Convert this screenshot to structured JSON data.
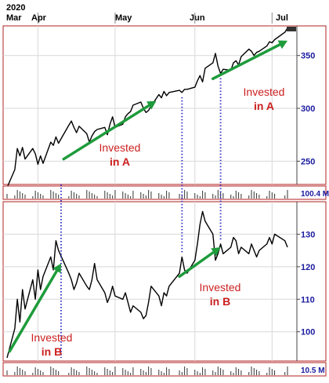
{
  "chart_data": [
    {
      "type": "line",
      "name_hint": "stock-a-panel",
      "x_axis": {
        "year_label": "2020",
        "month_labels": [
          "Mar",
          "Apr",
          "May",
          "Jun",
          "Jul"
        ],
        "range": [
          "2020-03-20",
          "2020-07-07"
        ]
      },
      "ylim": [
        228,
        378
      ],
      "y_ticks": [
        250,
        300,
        350
      ],
      "grid": true,
      "volume_label": "100.4 M",
      "series": [
        {
          "values": [
            [
              "2020-03-20",
              225
            ],
            [
              "2020-03-23",
              242
            ],
            [
              "2020-03-24",
              262
            ],
            [
              "2020-03-25",
              255
            ],
            [
              "2020-03-26",
              263
            ],
            [
              "2020-03-27",
              252
            ],
            [
              "2020-03-30",
              262
            ],
            [
              "2020-03-31",
              257
            ],
            [
              "2020-04-01",
              247
            ],
            [
              "2020-04-02",
              255
            ],
            [
              "2020-04-03",
              248
            ],
            [
              "2020-04-06",
              268
            ],
            [
              "2020-04-07",
              265
            ],
            [
              "2020-04-08",
              273
            ],
            [
              "2020-04-09",
              267
            ],
            [
              "2020-04-13",
              284
            ],
            [
              "2020-04-14",
              288
            ],
            [
              "2020-04-15",
              282
            ],
            [
              "2020-04-16",
              277
            ],
            [
              "2020-04-17",
              283
            ],
            [
              "2020-04-20",
              276
            ],
            [
              "2020-04-21",
              268
            ],
            [
              "2020-04-22",
              274
            ],
            [
              "2020-04-23",
              278
            ],
            [
              "2020-04-24",
              280
            ],
            [
              "2020-04-27",
              282
            ],
            [
              "2020-04-28",
              275
            ],
            [
              "2020-04-29",
              285
            ],
            [
              "2020-04-30",
              292
            ],
            [
              "2020-05-01",
              282
            ],
            [
              "2020-05-04",
              285
            ],
            [
              "2020-05-05",
              292
            ],
            [
              "2020-05-06",
              295
            ],
            [
              "2020-05-07",
              297
            ],
            [
              "2020-05-08",
              303
            ],
            [
              "2020-05-11",
              306
            ],
            [
              "2020-05-12",
              300
            ],
            [
              "2020-05-13",
              296
            ],
            [
              "2020-05-14",
              298
            ],
            [
              "2020-05-15",
              302
            ],
            [
              "2020-05-18",
              313
            ],
            [
              "2020-05-19",
              310
            ],
            [
              "2020-05-20",
              316
            ],
            [
              "2020-05-21",
              312
            ],
            [
              "2020-05-22",
              315
            ],
            [
              "2020-05-26",
              317
            ],
            [
              "2020-05-27",
              315
            ],
            [
              "2020-05-28",
              318
            ],
            [
              "2020-05-29",
              318
            ],
            [
              "2020-06-01",
              320
            ],
            [
              "2020-06-02",
              326
            ],
            [
              "2020-06-03",
              331
            ],
            [
              "2020-06-04",
              325
            ],
            [
              "2020-06-05",
              338
            ],
            [
              "2020-06-08",
              343
            ],
            [
              "2020-06-09",
              352
            ],
            [
              "2020-06-10",
              340
            ],
            [
              "2020-06-11",
              333
            ],
            [
              "2020-06-12",
              337
            ],
            [
              "2020-06-15",
              336
            ],
            [
              "2020-06-16",
              343
            ],
            [
              "2020-06-17",
              345
            ],
            [
              "2020-06-18",
              341
            ],
            [
              "2020-06-19",
              349
            ],
            [
              "2020-06-22",
              356
            ],
            [
              "2020-06-23",
              354
            ],
            [
              "2020-06-24",
              350
            ],
            [
              "2020-06-25",
              353
            ],
            [
              "2020-06-26",
              354
            ],
            [
              "2020-06-29",
              359
            ],
            [
              "2020-06-30",
              363
            ],
            [
              "2020-07-01",
              362
            ],
            [
              "2020-07-02",
              365
            ],
            [
              "2020-07-06",
              372
            ],
            [
              "2020-07-07",
              376
            ]
          ]
        }
      ],
      "annotations": [
        {
          "text_line1": "Invested",
          "text_line2": "in A",
          "from": [
            "2020-04-11",
            252
          ],
          "to": [
            "2020-05-17",
            307
          ]
        },
        {
          "text_line1": "Invested",
          "text_line2": "in A",
          "from": [
            "2020-06-08",
            328
          ],
          "to": [
            "2020-07-07",
            364
          ]
        }
      ]
    },
    {
      "type": "line",
      "name_hint": "stock-b-panel",
      "ylim": [
        91,
        140
      ],
      "y_ticks": [
        100,
        110,
        120,
        130
      ],
      "grid": true,
      "volume_label": "10.5 M",
      "series": [
        {
          "values": [
            [
              "2020-03-20",
              92
            ],
            [
              "2020-03-23",
              101
            ],
            [
              "2020-03-24",
              110
            ],
            [
              "2020-03-25",
              103
            ],
            [
              "2020-03-26",
              113
            ],
            [
              "2020-03-27",
              107
            ],
            [
              "2020-03-30",
              116
            ],
            [
              "2020-03-31",
              110
            ],
            [
              "2020-04-01",
              119
            ],
            [
              "2020-04-02",
              113
            ],
            [
              "2020-04-03",
              117
            ],
            [
              "2020-04-06",
              123
            ],
            [
              "2020-04-07",
              119
            ],
            [
              "2020-04-08",
              128
            ],
            [
              "2020-04-09",
              125
            ],
            [
              "2020-04-13",
              118
            ],
            [
              "2020-04-14",
              116
            ],
            [
              "2020-04-15",
              113
            ],
            [
              "2020-04-16",
              115
            ],
            [
              "2020-04-17",
              118
            ],
            [
              "2020-04-20",
              114
            ],
            [
              "2020-04-21",
              113
            ],
            [
              "2020-04-22",
              116
            ],
            [
              "2020-04-23",
              121
            ],
            [
              "2020-04-24",
              116
            ],
            [
              "2020-04-27",
              112
            ],
            [
              "2020-04-28",
              109
            ],
            [
              "2020-04-29",
              111
            ],
            [
              "2020-04-30",
              114
            ],
            [
              "2020-05-01",
              111
            ],
            [
              "2020-05-04",
              110
            ],
            [
              "2020-05-05",
              112
            ],
            [
              "2020-05-06",
              109
            ],
            [
              "2020-05-07",
              106
            ],
            [
              "2020-05-08",
              108
            ],
            [
              "2020-05-11",
              106
            ],
            [
              "2020-05-12",
              104
            ],
            [
              "2020-05-13",
              105
            ],
            [
              "2020-05-14",
              109
            ],
            [
              "2020-05-15",
              114
            ],
            [
              "2020-05-18",
              111
            ],
            [
              "2020-05-19",
              108
            ],
            [
              "2020-05-20",
              112
            ],
            [
              "2020-05-21",
              111
            ],
            [
              "2020-05-22",
              114
            ],
            [
              "2020-05-26",
              118
            ],
            [
              "2020-05-27",
              123
            ],
            [
              "2020-05-28",
              119
            ],
            [
              "2020-05-29",
              118
            ],
            [
              "2020-06-01",
              122
            ],
            [
              "2020-06-02",
              127
            ],
            [
              "2020-06-03",
              133
            ],
            [
              "2020-06-04",
              137
            ],
            [
              "2020-06-05",
              134
            ],
            [
              "2020-06-08",
              130
            ],
            [
              "2020-06-09",
              122
            ],
            [
              "2020-06-10",
              124
            ],
            [
              "2020-06-11",
              127
            ],
            [
              "2020-06-12",
              124
            ],
            [
              "2020-06-15",
              126
            ],
            [
              "2020-06-16",
              129
            ],
            [
              "2020-06-17",
              128
            ],
            [
              "2020-06-18",
              124
            ],
            [
              "2020-06-19",
              126
            ],
            [
              "2020-06-22",
              124
            ],
            [
              "2020-06-23",
              127
            ],
            [
              "2020-06-24",
              125
            ],
            [
              "2020-06-25",
              123
            ],
            [
              "2020-06-26",
              125
            ],
            [
              "2020-06-29",
              127
            ],
            [
              "2020-06-30",
              129
            ],
            [
              "2020-07-01",
              127
            ],
            [
              "2020-07-02",
              130
            ],
            [
              "2020-07-06",
              128
            ],
            [
              "2020-07-07",
              126
            ]
          ]
        }
      ],
      "annotations": [
        {
          "text_line1": "Invested",
          "text_line2": "in B",
          "from": [
            "2020-03-21",
            94
          ],
          "to": [
            "2020-04-10",
            121
          ]
        },
        {
          "text_line1": "Invested",
          "text_line2": "in B",
          "from": [
            "2020-05-26",
            117
          ],
          "to": [
            "2020-06-11",
            126
          ]
        }
      ],
      "switch_lines": [
        "2020-04-10",
        "2020-05-27",
        "2020-06-11"
      ]
    }
  ],
  "colors": {
    "frame": "#b22222",
    "price_line": "#000000",
    "arrow": "#1e9b3b",
    "annotation_text": "#cc1f1f",
    "switch_line": "#3a3ac8",
    "axis_text": "#1a1aa0",
    "grid": "#d8d8d8"
  }
}
